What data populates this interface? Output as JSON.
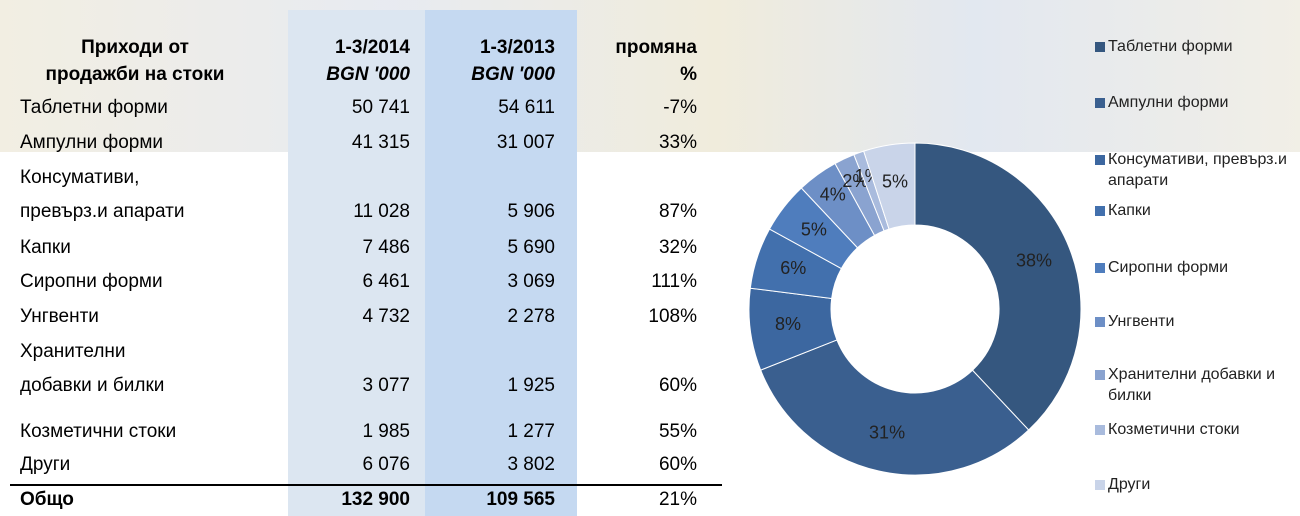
{
  "table": {
    "header": {
      "label": [
        "Приходи от",
        "продажби на стоки"
      ],
      "y2014": [
        "1-3/2014",
        "BGN '000"
      ],
      "y2013": [
        "1-3/2013",
        "BGN '000"
      ],
      "change": [
        "промяна",
        "%"
      ]
    },
    "rows": [
      {
        "label": [
          "Таблетни форми"
        ],
        "y2014": "50 741",
        "y2013": "54 611",
        "change": "-7%"
      },
      {
        "label": [
          "Ампулни форми"
        ],
        "y2014": "41 315",
        "y2013": "31 007",
        "change": "33%"
      },
      {
        "label": [
          "Консумативи,",
          "превърз.и апарати"
        ],
        "y2014": "11 028",
        "y2013": "5 906",
        "change": "87%"
      },
      {
        "label": [
          "Капки"
        ],
        "y2014": "7 486",
        "y2013": "5 690",
        "change": "32%"
      },
      {
        "label": [
          "Сиропни форми"
        ],
        "y2014": "6 461",
        "y2013": "3 069",
        "change": "111%"
      },
      {
        "label": [
          "Унгвенти"
        ],
        "y2014": "4 732",
        "y2013": "2 278",
        "change": "108%"
      },
      {
        "label": [
          "Хранителни",
          "добавки и билки"
        ],
        "y2014": "3 077",
        "y2013": "1 925",
        "change": "60%"
      },
      {
        "label": [
          "Козметични стоки"
        ],
        "y2014": "1 985",
        "y2013": "1 277",
        "change": "55%"
      },
      {
        "label": [
          "Други"
        ],
        "y2014": "6 076",
        "y2013": "3 802",
        "change": "60%"
      }
    ],
    "total": {
      "label": [
        "Общо"
      ],
      "y2014": "132 900",
      "y2013": "109 565",
      "change": "21%"
    }
  },
  "chart_data": {
    "type": "donut",
    "categories": [
      "Таблетни форми",
      "Ампулни форми",
      "Консумативи, превърз.и апарати",
      "Капки",
      "Сиропни форми",
      "Унгвенти",
      "Хранителни добавки и билки",
      "Козметични стоки",
      "Други"
    ],
    "values": [
      38,
      31,
      8,
      6,
      5,
      4,
      2,
      1,
      5
    ],
    "value_labels": [
      "38%",
      "31%",
      "8%",
      "6%",
      "5%",
      "4%",
      "2%",
      "1%",
      "5%"
    ],
    "colors": [
      "#35577f",
      "#3a5f8f",
      "#3c67a0",
      "#4270ad",
      "#4f7dbd",
      "#6d8fc6",
      "#8aa3d0",
      "#a9bbdd",
      "#c9d4e9"
    ]
  }
}
